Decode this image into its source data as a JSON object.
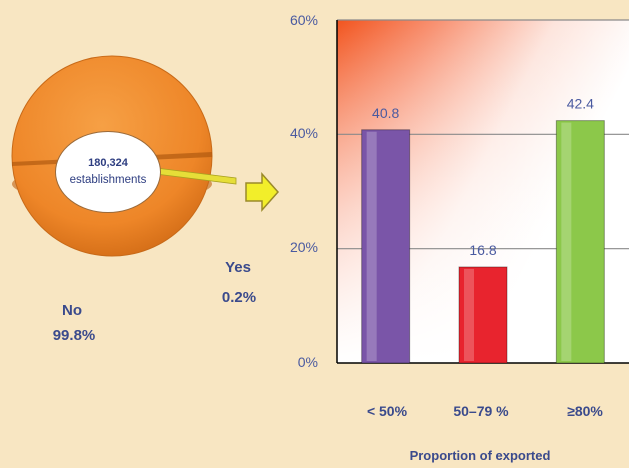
{
  "pie": {
    "center_count": "180,324",
    "center_unit": "establishments",
    "slices": [
      {
        "label": "No",
        "value_label": "99.8%",
        "value": 99.8,
        "color": "#f08a2a"
      },
      {
        "label": "Yes",
        "value_label": "0.2%",
        "value": 0.2,
        "color": "#e8e03a"
      }
    ]
  },
  "chart_data": {
    "type": "bar",
    "categories": [
      "< 50%",
      "50–79 %",
      "≥80%"
    ],
    "values": [
      40.8,
      16.8,
      42.4
    ],
    "value_labels": [
      "40.8",
      "16.8",
      "42.4"
    ],
    "colors": [
      "#7a55a8",
      "#e8242e",
      "#8cc84a"
    ],
    "xlabel": "Proportion of exported",
    "ylim": [
      0,
      60
    ],
    "yticks": [
      0,
      20,
      40,
      60
    ],
    "ytick_labels": [
      "0%",
      "20%",
      "40%",
      "60%"
    ],
    "grid": true,
    "background": "gradient"
  }
}
